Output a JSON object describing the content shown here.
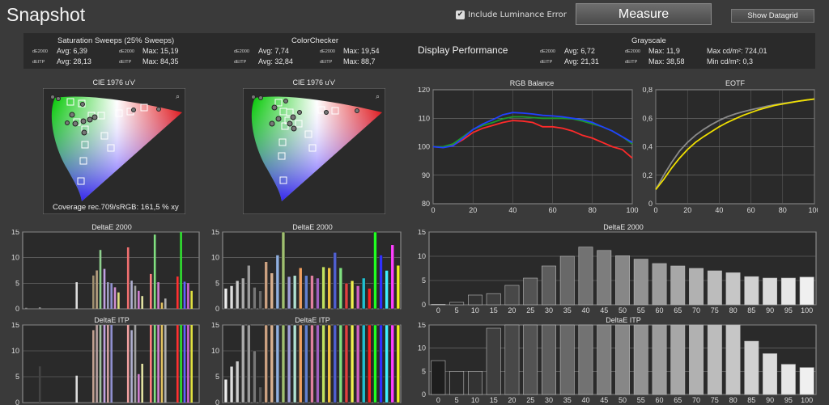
{
  "header": {
    "title": "Snapshot",
    "include_luminance": "Include Luminance Error",
    "measure_label": "Measure",
    "show_datagrid_label": "Show Datagrid",
    "checkmark": "✔"
  },
  "summary": {
    "sat": {
      "title": "Saturation Sweeps (25% Sweeps)",
      "rows": [
        {
          "avg_label": "dE2000",
          "avg": "Avg: 6,39",
          "max_label": "dE2000",
          "max": "Max: 15,19"
        },
        {
          "avg_label": "dEITP",
          "avg": "Avg: 28,13",
          "max_label": "dEITP",
          "max": "Max: 84,35"
        }
      ]
    },
    "cc": {
      "title": "ColorChecker",
      "rows": [
        {
          "avg_label": "dE2000",
          "avg": "Avg: 7,74",
          "max_label": "dE2000",
          "max": "Max: 19,54"
        },
        {
          "avg_label": "dEITP",
          "avg": "Avg: 32,84",
          "max_label": "dEITP",
          "max": "Max: 88,7"
        }
      ]
    },
    "display_performance": "Display Performance",
    "gs": {
      "title": "Grayscale",
      "rows": [
        {
          "avg_label": "dE2000",
          "avg": "Avg: 6,72",
          "max_label": "dE2000",
          "max": "Max: 11,9",
          "lum": "Max cd/m²:  724,01"
        },
        {
          "avg_label": "dEITP",
          "avg": "Avg: 21,31",
          "max_label": "dEITP",
          "max": "Max: 38,58",
          "lum": "Min cd/m²:  0,3"
        }
      ]
    }
  },
  "cie": {
    "title": "CIE 1976 u'v'",
    "coverage": "Coverage rec.709/sRGB:  161,5 % xy",
    "zoom_icon": "magnifier-icon"
  },
  "chart_data": [
    {
      "id": "rgb",
      "type": "line",
      "title": "RGB Balance",
      "xlim": [
        0,
        100
      ],
      "ylim": [
        80,
        120
      ],
      "xticks": [
        0,
        20,
        40,
        60,
        80,
        100
      ],
      "yticks": [
        80,
        90,
        100,
        110,
        120
      ],
      "grid": true,
      "series": [
        {
          "color": "#ff2a2a",
          "x": [
            0,
            5,
            10,
            15,
            20,
            25,
            30,
            35,
            40,
            45,
            50,
            55,
            60,
            65,
            70,
            75,
            80,
            85,
            90,
            95,
            100
          ],
          "y": [
            100,
            99.8,
            100.5,
            102.5,
            105,
            106.5,
            107.5,
            108.5,
            109.2,
            109,
            108.5,
            107,
            107,
            106.5,
            105.5,
            104,
            103,
            101.5,
            100,
            99,
            96
          ]
        },
        {
          "color": "#1e9a2a",
          "x": [
            0,
            5,
            10,
            15,
            20,
            25,
            30,
            35,
            40,
            45,
            50,
            55,
            60,
            65,
            70,
            75,
            80,
            85,
            90,
            95,
            100
          ],
          "y": [
            100,
            100,
            101,
            103.5,
            106,
            107.5,
            108.5,
            109.8,
            110.5,
            110.5,
            110.2,
            110,
            110,
            110,
            109.8,
            109,
            108,
            107,
            105.5,
            103.5,
            101
          ]
        },
        {
          "color": "#2040ff",
          "x": [
            0,
            5,
            10,
            15,
            20,
            25,
            30,
            35,
            40,
            45,
            50,
            55,
            60,
            65,
            70,
            75,
            80,
            85,
            90,
            95,
            100
          ],
          "y": [
            100,
            99.7,
            100.3,
            103,
            106,
            108,
            109.5,
            111.2,
            112,
            111.8,
            111.5,
            111,
            110.8,
            110.5,
            110,
            109.5,
            108.5,
            107,
            105.5,
            103.5,
            101.5
          ]
        }
      ]
    },
    {
      "id": "eotf",
      "type": "line",
      "title": "EOTF",
      "xlim": [
        0,
        100
      ],
      "ylim": [
        0,
        0.8
      ],
      "xticks": [
        0,
        20,
        40,
        60,
        80,
        100
      ],
      "yticks": [
        0,
        0.2,
        0.4,
        0.6,
        0.8
      ],
      "yticklabels": [
        "0",
        "0,2",
        "0,4",
        "0,6",
        "0,8"
      ],
      "grid": true,
      "series": [
        {
          "color": "#8a8a8a",
          "x": [
            0,
            5,
            10,
            15,
            20,
            25,
            30,
            35,
            40,
            45,
            50,
            55,
            60,
            65,
            70,
            75,
            80,
            85,
            90,
            95,
            100
          ],
          "y": [
            0.1,
            0.2,
            0.29,
            0.37,
            0.43,
            0.48,
            0.52,
            0.555,
            0.585,
            0.61,
            0.63,
            0.645,
            0.66,
            0.672,
            0.684,
            0.695,
            0.704,
            0.712,
            0.72,
            0.727,
            0.735
          ]
        },
        {
          "color": "#f0e000",
          "x": [
            0,
            5,
            10,
            15,
            20,
            25,
            30,
            35,
            40,
            45,
            50,
            55,
            60,
            65,
            70,
            75,
            80,
            85,
            90,
            95,
            100
          ],
          "y": [
            0.1,
            0.17,
            0.25,
            0.32,
            0.38,
            0.43,
            0.47,
            0.505,
            0.54,
            0.57,
            0.595,
            0.62,
            0.64,
            0.66,
            0.675,
            0.69,
            0.7,
            0.71,
            0.72,
            0.728,
            0.735
          ]
        }
      ]
    },
    {
      "id": "sat2000",
      "type": "bar",
      "title": "DeltaE 2000",
      "ylim": [
        0,
        15
      ],
      "yticks": [
        0,
        5,
        10,
        15
      ],
      "bars": [
        {
          "x": 0.5,
          "v": 0.2,
          "c": "#888"
        },
        {
          "x": 3.2,
          "v": 0.3,
          "c": "#888"
        },
        {
          "x": 10.5,
          "v": 5.2,
          "c": "#ddd"
        },
        {
          "x": 13.8,
          "v": 6.5,
          "c": "#a09070"
        },
        {
          "x": 14.5,
          "v": 7.5,
          "c": "#b8a080"
        },
        {
          "x": 15.2,
          "v": 11.5,
          "c": "#8fd18f"
        },
        {
          "x": 16,
          "v": 7.8,
          "c": "#c0a0e0"
        },
        {
          "x": 16.7,
          "v": 5.2,
          "c": "#9fa0c0"
        },
        {
          "x": 17.4,
          "v": 5.0,
          "c": "#9090d0"
        },
        {
          "x": 18.1,
          "v": 4.2,
          "c": "#cf8fcf"
        },
        {
          "x": 18.8,
          "v": 3.2,
          "c": "#e0e080"
        },
        {
          "x": 20.7,
          "v": 12,
          "c": "#f07070"
        },
        {
          "x": 21.4,
          "v": 5.5,
          "c": "#b0b0d0"
        },
        {
          "x": 22.1,
          "v": 4.5,
          "c": "#a0a0a0"
        },
        {
          "x": 22.8,
          "v": 3.5,
          "c": "#d080d0"
        },
        {
          "x": 23.5,
          "v": 2.5,
          "c": "#e0e0a0"
        },
        {
          "x": 25.2,
          "v": 6.8,
          "c": "#ff8080"
        },
        {
          "x": 26,
          "v": 14.5,
          "c": "#80e080"
        },
        {
          "x": 26.7,
          "v": 5.2,
          "c": "#d080d0"
        },
        {
          "x": 27.4,
          "v": 1.2,
          "c": "#e0c060"
        },
        {
          "x": 28.1,
          "v": 2,
          "c": "#b0b0b0"
        },
        {
          "x": 30.5,
          "v": 6.3,
          "c": "#ff3030"
        },
        {
          "x": 31.2,
          "v": 15,
          "c": "#30e030"
        },
        {
          "x": 31.9,
          "v": 5.3,
          "c": "#6060ff"
        },
        {
          "x": 32.6,
          "v": 5,
          "c": "#d060d0"
        },
        {
          "x": 33.3,
          "v": 3.5,
          "c": "#e0e040"
        }
      ]
    },
    {
      "id": "cc2000",
      "type": "bar",
      "title": "DeltaE 2000",
      "ylim": [
        0,
        15
      ],
      "yticks": [
        0,
        5,
        10,
        15
      ],
      "bars": [
        {
          "v": 4,
          "c": "#eee"
        },
        {
          "v": 4.5,
          "c": "#ddd"
        },
        {
          "v": 5.5,
          "c": "#ccc"
        },
        {
          "v": 6,
          "c": "#aaa"
        },
        {
          "v": 8.5,
          "c": "#999"
        },
        {
          "v": 4.2,
          "c": "#777"
        },
        {
          "v": 3.5,
          "c": "#666"
        },
        {
          "v": 9.2,
          "c": "#caa080"
        },
        {
          "v": 7,
          "c": "#d8b090"
        },
        {
          "v": 10.5,
          "c": "#90b0e0"
        },
        {
          "v": 15,
          "c": "#a0c070"
        },
        {
          "v": 6.3,
          "c": "#a0a0d8"
        },
        {
          "v": 6.5,
          "c": "#b0e0d0"
        },
        {
          "v": 8,
          "c": "#f0a060"
        },
        {
          "v": 6.5,
          "c": "#6080d0"
        },
        {
          "v": 6.5,
          "c": "#e080a0"
        },
        {
          "v": 6,
          "c": "#a060c0"
        },
        {
          "v": 8.2,
          "c": "#c0e060"
        },
        {
          "v": 8,
          "c": "#f0c040"
        },
        {
          "v": 11,
          "c": "#5060d0"
        },
        {
          "v": 8,
          "c": "#80e080"
        },
        {
          "v": 5,
          "c": "#e04040"
        },
        {
          "v": 5.5,
          "c": "#f0f050"
        },
        {
          "v": 4.5,
          "c": "#d060c0"
        },
        {
          "v": 6,
          "c": "#20c0d0"
        },
        {
          "v": 4,
          "c": "#ff2020"
        },
        {
          "v": 15,
          "c": "#20ff20"
        },
        {
          "v": 10.5,
          "c": "#3030ff"
        },
        {
          "v": 7.5,
          "c": "#40f0ff"
        },
        {
          "v": 12.5,
          "c": "#ff40ff"
        },
        {
          "v": 8.5,
          "c": "#f0f020"
        }
      ]
    },
    {
      "id": "gs2000",
      "type": "bar",
      "title": "DeltaE 2000",
      "ylim": [
        0,
        15
      ],
      "yticks": [
        0,
        5,
        10,
        15
      ],
      "categories": [
        "0",
        "5",
        "10",
        "15",
        "20",
        "25",
        "30",
        "35",
        "40",
        "45",
        "50",
        "55",
        "60",
        "65",
        "70",
        "75",
        "80",
        "85",
        "90",
        "95",
        "100"
      ],
      "values": [
        0.1,
        0.5,
        2,
        2.3,
        4,
        5.5,
        8,
        10,
        11.9,
        11.2,
        10.1,
        9.4,
        8.5,
        8,
        7.5,
        7,
        6.6,
        5.8,
        5.5,
        5.5,
        5.7
      ]
    },
    {
      "id": "satitp",
      "type": "bar",
      "title": "DeltaE ITP",
      "ylim": [
        0,
        15
      ],
      "yticks": [
        0,
        5,
        10,
        15
      ],
      "bars": [
        {
          "x": 3.2,
          "v": 7,
          "c": "#444"
        },
        {
          "x": 10.5,
          "v": 5.2,
          "c": "#ddd"
        },
        {
          "x": 13.8,
          "v": 14,
          "c": "#c0a090"
        },
        {
          "x": 14.5,
          "v": 15,
          "c": "#b8a0a0"
        },
        {
          "x": 15.2,
          "v": 15,
          "c": "#a0c0a0"
        },
        {
          "x": 16,
          "v": 15,
          "c": "#c0a0e0"
        },
        {
          "x": 16.7,
          "v": 15,
          "c": "#d0a0a0"
        },
        {
          "x": 17.4,
          "v": 15,
          "c": "#9090d0"
        },
        {
          "x": 20.7,
          "v": 15,
          "c": "#f0a0a0"
        },
        {
          "x": 21.4,
          "v": 14,
          "c": "#b0b0d0"
        },
        {
          "x": 22.1,
          "v": 15,
          "c": "#a0a0a0"
        },
        {
          "x": 22.8,
          "v": 5.5,
          "c": "#d080d0"
        },
        {
          "x": 23.5,
          "v": 7.5,
          "c": "#e0e0a0"
        },
        {
          "x": 25.2,
          "v": 15,
          "c": "#ff8080"
        },
        {
          "x": 26,
          "v": 15,
          "c": "#80e080"
        },
        {
          "x": 26.7,
          "v": 15,
          "c": "#d080d0"
        },
        {
          "x": 27.4,
          "v": 15,
          "c": "#e0c060"
        },
        {
          "x": 28.1,
          "v": 15,
          "c": "#b0b0b0"
        },
        {
          "x": 30.5,
          "v": 15,
          "c": "#ff3030"
        },
        {
          "x": 31.2,
          "v": 15,
          "c": "#30e030"
        },
        {
          "x": 31.9,
          "v": 15,
          "c": "#6060ff"
        },
        {
          "x": 32.6,
          "v": 15,
          "c": "#d060d0"
        },
        {
          "x": 33.3,
          "v": 15,
          "c": "#e0e040"
        }
      ]
    },
    {
      "id": "ccitp",
      "type": "bar",
      "title": "DeltaE ITP",
      "ylim": [
        0,
        15
      ],
      "yticks": [
        0,
        5,
        10,
        15
      ],
      "bars": [
        {
          "v": 4.5,
          "c": "#eee"
        },
        {
          "v": 7,
          "c": "#ddd"
        },
        {
          "v": 8,
          "c": "#ccc"
        },
        {
          "v": 15,
          "c": "#aaa"
        },
        {
          "v": 15,
          "c": "#999"
        },
        {
          "v": 10,
          "c": "#777"
        },
        {
          "v": 3,
          "c": "#555"
        },
        {
          "v": 15,
          "c": "#caa080"
        },
        {
          "v": 15,
          "c": "#d8b090"
        },
        {
          "v": 15,
          "c": "#90b0e0"
        },
        {
          "v": 15,
          "c": "#a0c070"
        },
        {
          "v": 15,
          "c": "#a0a0d8"
        },
        {
          "v": 15,
          "c": "#b0e0d0"
        },
        {
          "v": 15,
          "c": "#f0a060"
        },
        {
          "v": 15,
          "c": "#6080d0"
        },
        {
          "v": 15,
          "c": "#e080a0"
        },
        {
          "v": 15,
          "c": "#a060c0"
        },
        {
          "v": 15,
          "c": "#c0e060"
        },
        {
          "v": 15,
          "c": "#f0c040"
        },
        {
          "v": 15,
          "c": "#5060d0"
        },
        {
          "v": 15,
          "c": "#80e080"
        },
        {
          "v": 15,
          "c": "#e04040"
        },
        {
          "v": 15,
          "c": "#f0f050"
        },
        {
          "v": 15,
          "c": "#d060c0"
        },
        {
          "v": 15,
          "c": "#20c0d0"
        },
        {
          "v": 15,
          "c": "#ff2020"
        },
        {
          "v": 15,
          "c": "#20ff20"
        },
        {
          "v": 15,
          "c": "#3030ff"
        },
        {
          "v": 15,
          "c": "#40f0ff"
        },
        {
          "v": 15,
          "c": "#ff40ff"
        },
        {
          "v": 15,
          "c": "#f0f020"
        }
      ]
    },
    {
      "id": "gsitp",
      "type": "bar",
      "title": "DeltaE ITP",
      "ylim": [
        0,
        15
      ],
      "yticks": [
        0,
        5,
        10,
        15
      ],
      "categories": [
        "0",
        "5",
        "10",
        "15",
        "20",
        "25",
        "30",
        "35",
        "40",
        "45",
        "50",
        "55",
        "60",
        "65",
        "70",
        "75",
        "80",
        "85",
        "90",
        "95",
        "100"
      ],
      "values": [
        7.3,
        5,
        5,
        14.3,
        15,
        15,
        15,
        15,
        15,
        15,
        15,
        15,
        15,
        15,
        15,
        15,
        15,
        11.5,
        8.8,
        6.5,
        5.8
      ]
    }
  ]
}
